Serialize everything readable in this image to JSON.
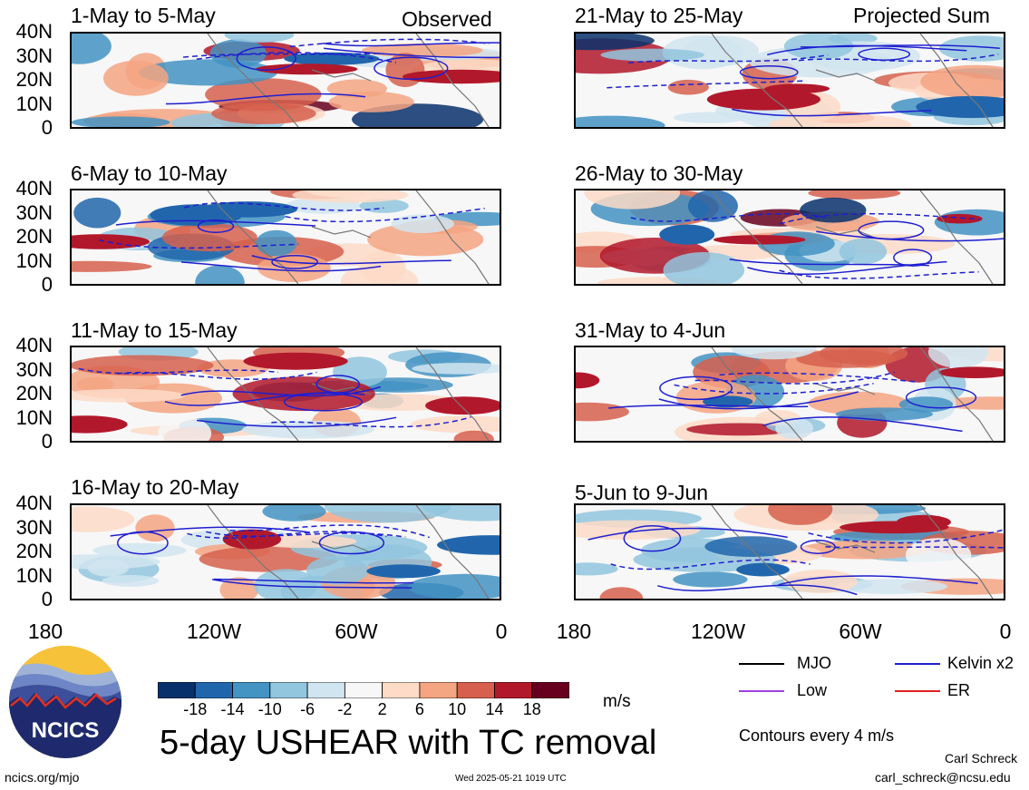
{
  "chart_data": {
    "type": "heatmap",
    "title": "5-day USHEAR with TC removal",
    "units": "m/s",
    "contour_note": "Contours every 4 m/s",
    "columns": [
      {
        "name": "Observed",
        "panels": [
          {
            "title": "1-May to 5-May"
          },
          {
            "title": "6-May to 10-May"
          },
          {
            "title": "11-May to 15-May"
          },
          {
            "title": "16-May to 20-May"
          }
        ]
      },
      {
        "name": "Projected Sum",
        "panels": [
          {
            "title": "21-May to 25-May"
          },
          {
            "title": "26-May to 30-May"
          },
          {
            "title": "31-May to 4-Jun"
          },
          {
            "title": "5-Jun to 9-Jun"
          }
        ]
      }
    ],
    "y_ticks": [
      "40N",
      "30N",
      "20N",
      "10N",
      "0"
    ],
    "x_ticks": [
      "180",
      "120W",
      "60W",
      "0"
    ],
    "colorbar": {
      "tick_labels": [
        "-18",
        "-14",
        "-10",
        "-6",
        "-2",
        "2",
        "6",
        "10",
        "14",
        "18"
      ],
      "colors": [
        "#08306b",
        "#2166ac",
        "#4393c3",
        "#92c5de",
        "#d1e5f0",
        "#f7f7f7",
        "#fddbc7",
        "#f4a582",
        "#d6604d",
        "#b2182b",
        "#67001f"
      ]
    },
    "legend": [
      {
        "label": "MJO",
        "color": "#000000"
      },
      {
        "label": "Kelvin x2",
        "color": "#1f1fd0"
      },
      {
        "label": "Low",
        "color": "#a040e0"
      },
      {
        "label": "ER",
        "color": "#e02020"
      }
    ]
  },
  "logo": {
    "text": "NCICS"
  },
  "footer": {
    "url": "ncics.org/mjo",
    "timestamp": "Wed 2025-05-21 1019 UTC",
    "author": "Carl Schreck",
    "email": "carl_schreck@ncsu.edu"
  }
}
